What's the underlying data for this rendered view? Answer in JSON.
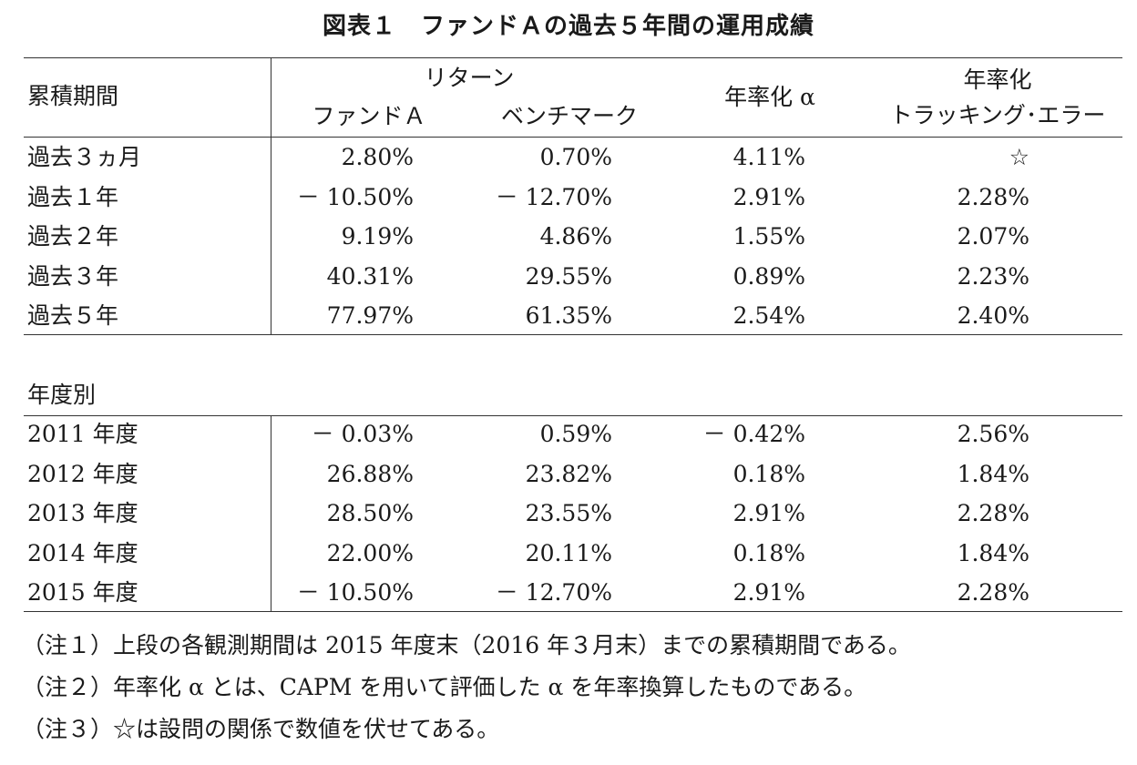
{
  "title": "図表１　ファンドＡの過去５年間の運用成績",
  "header": {
    "period_label": "累積期間",
    "return_group": "リターン",
    "fund_a": "ファンドＡ",
    "benchmark": "ベンチマーク",
    "alpha": "年率化 α",
    "te_line1": "年率化",
    "te_line2": "トラッキング･エラー"
  },
  "cumulative_rows": [
    {
      "period": "過去３ヵ月",
      "fund": "2.80%",
      "bench": "0.70%",
      "alpha": "4.11%",
      "te": "☆"
    },
    {
      "period": "過去１年",
      "fund": "－ 10.50%",
      "bench": "－ 12.70%",
      "alpha": "2.91%",
      "te": "2.28%"
    },
    {
      "period": "過去２年",
      "fund": "9.19%",
      "bench": "4.86%",
      "alpha": "1.55%",
      "te": "2.07%"
    },
    {
      "period": "過去３年",
      "fund": "40.31%",
      "bench": "29.55%",
      "alpha": "0.89%",
      "te": "2.23%"
    },
    {
      "period": "過去５年",
      "fund": "77.97%",
      "bench": "61.35%",
      "alpha": "2.54%",
      "te": "2.40%"
    }
  ],
  "annual_label": "年度別",
  "annual_rows": [
    {
      "period": "2011 年度",
      "fund": "－ 0.03%",
      "bench": "0.59%",
      "alpha": "－ 0.42%",
      "te": "2.56%"
    },
    {
      "period": "2012 年度",
      "fund": "26.88%",
      "bench": "23.82%",
      "alpha": "0.18%",
      "te": "1.84%"
    },
    {
      "period": "2013 年度",
      "fund": "28.50%",
      "bench": "23.55%",
      "alpha": "2.91%",
      "te": "2.28%"
    },
    {
      "period": "2014 年度",
      "fund": "22.00%",
      "bench": "20.11%",
      "alpha": "0.18%",
      "te": "1.84%"
    },
    {
      "period": "2015 年度",
      "fund": "－ 10.50%",
      "bench": "－ 12.70%",
      "alpha": "2.91%",
      "te": "2.28%"
    }
  ],
  "notes": [
    "（注１）上段の各観測期間は 2015 年度末（2016 年３月末）までの累積期間である。",
    "（注２）年率化 α とは、CAPM を用いて評価した α を年率換算したものである。",
    "（注３）☆は設問の関係で数値を伏せてある。"
  ]
}
